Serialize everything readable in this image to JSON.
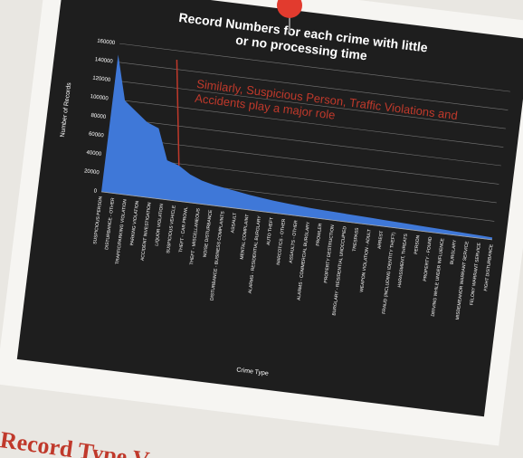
{
  "chart_data": {
    "type": "area",
    "title": "Record Numbers for each crime with little or no processing time",
    "y_label": "Number of Records",
    "x_label": "Crime Type",
    "annotation": "Similarly, Suspicious Person, Traffic Violations and Accidents play a major role",
    "color": "#3f78d8",
    "categories": [
      "SUSPICIOUS PERSON",
      "DISTURBANCE - OTHER",
      "TRAFFIC/PARKING VIOLATION",
      "PARKING VIOLATION",
      "ACCIDENT INVESTIGATION",
      "LIQUOR VIOLATION",
      "SUSPICIOUS VEHICLE",
      "THEFT - CAR PROWL",
      "THEFT - MISCELLANEOUS",
      "NOISE DISTURBANCE",
      "DISTURBANCE - BUSINESS COMPLAINTS",
      "ASSAULT",
      "MENTAL COMPLAINT",
      "ALARMS - RESIDENTIAL BURGLARY",
      "AUTO THEFT",
      "NARCOTICS - OTHER",
      "ASSAULTS - OTHER",
      "ALARMS - COMMERCIAL BURGLARY",
      "PROWLER",
      "PROPERTY DESTRUCTION",
      "BURGLARY - RESIDENTIAL UNOCCUPIED",
      "TRESPASS",
      "WEAPON VIOLATION - ADULT",
      "ARREST",
      "FRAUD (INCLUDING IDENTITY THEFT)",
      "HARASSMENT, THREATS",
      "PERSON",
      "PROPERTY - FOUND",
      "DRIVING WHILE UNDER INFLUENCE",
      "BURGLARY",
      "MISDEMEANOR WARRANT SERVICE",
      "FELONY WARRANT SERVICE",
      "FIGHT DISTURBANCE"
    ],
    "values": [
      148000,
      100000,
      90000,
      80000,
      75000,
      42000,
      38000,
      30000,
      25000,
      22000,
      20000,
      18000,
      16000,
      14500,
      13000,
      12000,
      11000,
      10000,
      9500,
      9000,
      8500,
      8000,
      7500,
      7000,
      6500,
      6000,
      5500,
      5000,
      4500,
      4000,
      3500,
      3000,
      2500
    ],
    "ylim": [
      0,
      160000
    ],
    "yticks": [
      0,
      20000,
      40000,
      60000,
      80000,
      100000,
      120000,
      140000,
      160000
    ],
    "grid": true
  },
  "footer": {
    "text": "Record Type V"
  }
}
